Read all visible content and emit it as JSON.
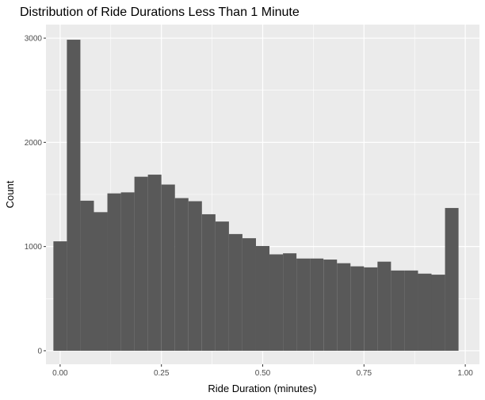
{
  "chart_data": {
    "type": "bar",
    "title": "Distribution of Ride Durations Less Than 1 Minute",
    "xlabel": "Ride Duration (minutes)",
    "ylabel": "Count",
    "xlim": [
      -0.035,
      1.035
    ],
    "ylim": [
      -130,
      3130
    ],
    "x_ticks": [
      0.0,
      0.25,
      0.5,
      0.75,
      1.0
    ],
    "x_tick_labels": [
      "0.00",
      "0.25",
      "0.50",
      "0.75",
      "1.00"
    ],
    "y_ticks": [
      0,
      1000,
      2000,
      3000
    ],
    "y_tick_labels": [
      "0",
      "1000",
      "2000",
      "3000"
    ],
    "bin_width": 0.0333,
    "bin_centers": [
      0.0,
      0.0333,
      0.0667,
      0.1,
      0.1333,
      0.1667,
      0.2,
      0.2333,
      0.2667,
      0.3,
      0.3333,
      0.3667,
      0.4,
      0.4333,
      0.4667,
      0.5,
      0.5333,
      0.5667,
      0.6,
      0.6333,
      0.6667,
      0.7,
      0.7333,
      0.7667,
      0.8,
      0.8333,
      0.8667,
      0.9,
      0.9333,
      0.9667,
      1.0
    ],
    "values": [
      1050,
      2985,
      1440,
      1330,
      1510,
      1520,
      1670,
      1690,
      1595,
      1465,
      1435,
      1310,
      1240,
      1120,
      1080,
      1005,
      925,
      935,
      885,
      885,
      875,
      840,
      810,
      800,
      855,
      770,
      770,
      740,
      730,
      1370,
      0
    ],
    "grid": true,
    "bar_color": "#595959",
    "panel_color": "#ebebeb",
    "grid_color": "#ffffff"
  }
}
